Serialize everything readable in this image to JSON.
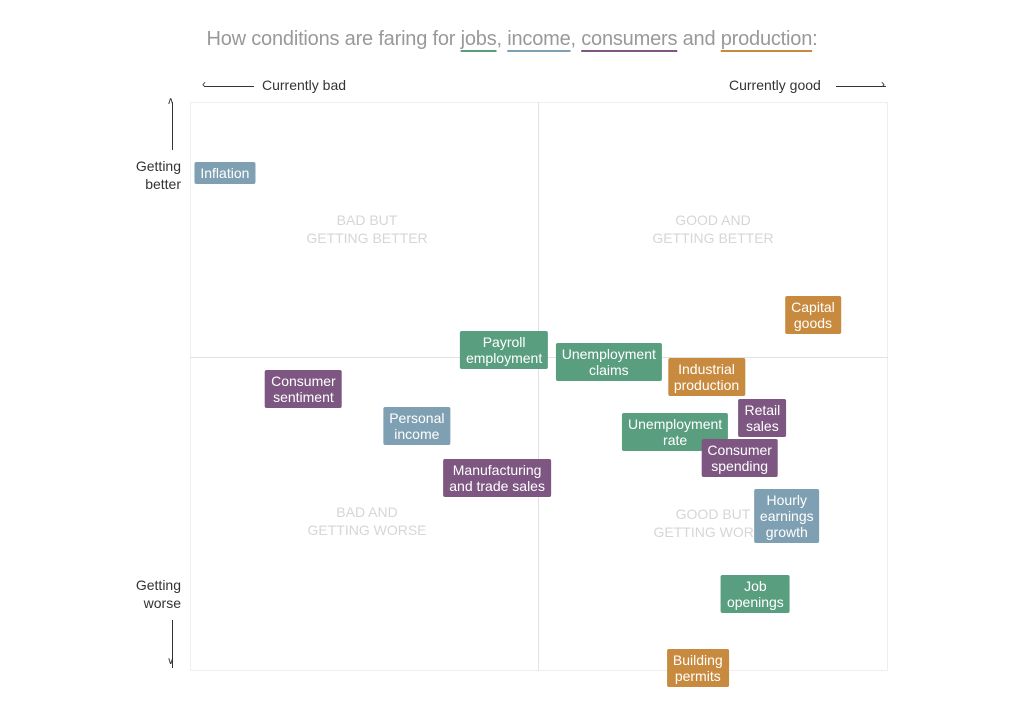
{
  "chart_data": {
    "type": "scatter",
    "title_parts": [
      {
        "text": "How conditions are faring for ",
        "category": null
      },
      {
        "text": "jobs",
        "category": "jobs"
      },
      {
        "text": ", ",
        "category": null
      },
      {
        "text": "income",
        "category": "income"
      },
      {
        "text": ", ",
        "category": null
      },
      {
        "text": "consumers",
        "category": "consumers"
      },
      {
        "text": " and ",
        "category": null
      },
      {
        "text": "production",
        "category": "production"
      },
      {
        "text": ":",
        "category": null
      }
    ],
    "title": "How conditions are faring for jobs, income, consumers and production:",
    "xlabel_left": "Currently bad",
    "xlabel_right": "Currently good",
    "ylabel_top": "Getting better",
    "ylabel_bottom": "Getting worse",
    "xlim": [
      -1,
      1
    ],
    "ylim": [
      -1,
      1
    ],
    "quadrants": [
      {
        "id": "top-left",
        "label_line1": "Bad but",
        "label_line2": "getting better"
      },
      {
        "id": "top-right",
        "label_line1": "Good and",
        "label_line2": "getting better"
      },
      {
        "id": "bottom-left",
        "label_line1": "Bad and",
        "label_line2": "getting worse"
      },
      {
        "id": "bottom-right",
        "label_line1": "Good but",
        "label_line2": "getting worse"
      }
    ],
    "categories": {
      "jobs": "#5a9e80",
      "income": "#7fa0b2",
      "consumers": "#7d5682",
      "production": "#c88a3e"
    },
    "points": [
      {
        "label": "Inflation",
        "category": "income",
        "x": -0.9,
        "y": 0.75
      },
      {
        "label": "Consumer\nsentiment",
        "category": "consumers",
        "x": -0.675,
        "y": -0.01
      },
      {
        "label": "Personal\nincome",
        "category": "income",
        "x": -0.35,
        "y": -0.14
      },
      {
        "label": "Manufacturing\nand trade sales",
        "category": "consumers",
        "x": -0.12,
        "y": -0.32
      },
      {
        "label": "Payroll\nemployment",
        "category": "jobs",
        "x": -0.1,
        "y": 0.13
      },
      {
        "label": "Unemployment\nclaims",
        "category": "jobs",
        "x": 0.2,
        "y": 0.085
      },
      {
        "label": "Industrial\nproduction",
        "category": "production",
        "x": 0.48,
        "y": 0.035
      },
      {
        "label": "Capital\ngoods",
        "category": "production",
        "x": 0.785,
        "y": 0.25
      },
      {
        "label": "Retail\nsales",
        "category": "consumers",
        "x": 0.64,
        "y": -0.11
      },
      {
        "label": "Unemployment\nrate",
        "category": "jobs",
        "x": 0.39,
        "y": -0.16
      },
      {
        "label": "Consumer\nspending",
        "category": "consumers",
        "x": 0.575,
        "y": -0.25
      },
      {
        "label": "Hourly\nearnings\ngrowth",
        "category": "income",
        "x": 0.71,
        "y": -0.455
      },
      {
        "label": "Job\nopenings",
        "category": "jobs",
        "x": 0.62,
        "y": -0.73
      },
      {
        "label": "Building\npermits",
        "category": "production",
        "x": 0.455,
        "y": -0.99
      }
    ]
  }
}
